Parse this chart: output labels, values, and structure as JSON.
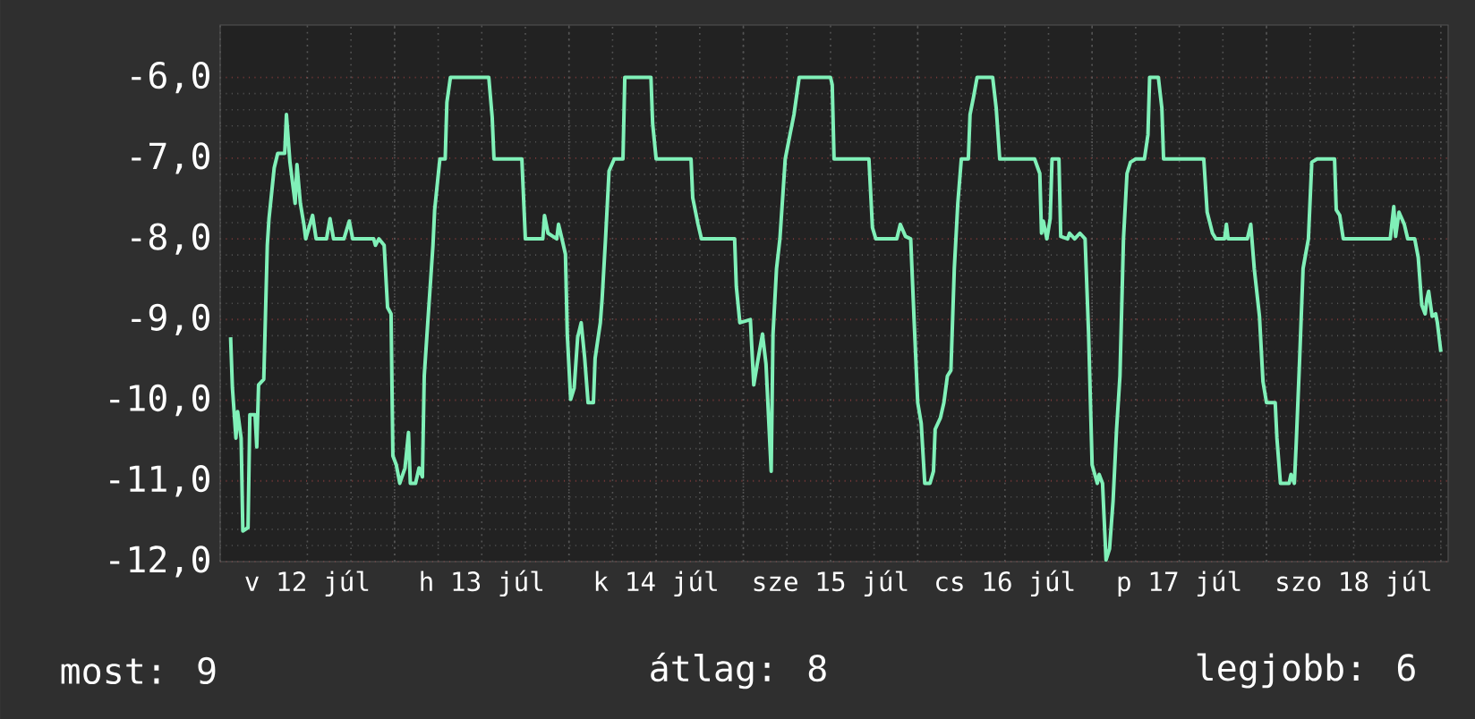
{
  "chart_data": {
    "type": "line",
    "color": "#80f0b8",
    "x": [
      "--07-12T01:26",
      "--07-12T01:41",
      "--07-12T02:10",
      "--07-12T02:24",
      "--07-12T02:53",
      "--07-12T03:07",
      "--07-12T03:50",
      "--07-12T04:05",
      "--07-12T04:48",
      "--07-12T05:02",
      "--07-12T05:17",
      "--07-12T06:00",
      "--07-12T06:29",
      "--07-12T06:43",
      "--07-12T07:26",
      "--07-12T07:55",
      "--07-12T08:53",
      "--07-12T09:07",
      "--07-12T09:36",
      "--07-12T10:19",
      "--07-12T10:34",
      "--07-12T11:02",
      "--07-12T11:31",
      "--07-12T11:46",
      "--07-12T12:43",
      "--07-12T13:12",
      "--07-12T14:38",
      "--07-12T15:07",
      "--07-12T15:36",
      "--07-12T17:02",
      "--07-12T17:46",
      "--07-12T18:14",
      "--07-12T21:07",
      "--07-12T21:22",
      "--07-12T21:50",
      "--07-12T22:34",
      "--07-12T23:02",
      "--07-12T23:31",
      "--07-12T23:46",
      "--07-13T00:14",
      "--07-13T00:43",
      "--07-13T01:26",
      "--07-13T01:55",
      "--07-13T02:10",
      "--07-13T02:53",
      "--07-13T03:22",
      "--07-13T03:50",
      "--07-13T04:05",
      "--07-13T04:34",
      "--07-13T05:17",
      "--07-13T05:31",
      "--07-13T06:14",
      "--07-13T06:58",
      "--07-13T07:12",
      "--07-13T07:41",
      "--07-13T12:58",
      "--07-13T13:26",
      "--07-13T13:41",
      "--07-13T17:31",
      "--07-13T18:00",
      "--07-13T20:24",
      "--07-13T20:38",
      "--07-13T21:07",
      "--07-13T22:19",
      "--07-13T22:34",
      "--07-13T23:02",
      "--07-13T23:31",
      "--07-13T23:46",
      "--07-14T00:14",
      "--07-14T00:43",
      "--07-14T01:12",
      "--07-14T01:41",
      "--07-14T02:10",
      "--07-14T02:38",
      "--07-14T03:22",
      "--07-14T03:36",
      "--07-14T04:19",
      "--07-14T04:34",
      "--07-14T05:02",
      "--07-14T05:31",
      "--07-14T06:14",
      "--07-14T07:26",
      "--07-14T07:41",
      "--07-14T11:17",
      "--07-14T11:31",
      "--07-14T12:00",
      "--07-14T16:48",
      "--07-14T17:02",
      "--07-14T17:46",
      "--07-14T18:14",
      "--07-14T22:48",
      "--07-14T23:02",
      "--07-14T23:31",
      "--07-15T00:58",
      "--07-15T01:26",
      "--07-15T01:55",
      "--07-15T02:38",
      "--07-15T03:07",
      "--07-15T03:50",
      "--07-15T04:05",
      "--07-15T04:34",
      "--07-15T05:02",
      "--07-15T05:46",
      "--07-15T06:29",
      "--07-15T06:58",
      "--07-15T07:41",
      "--07-15T12:00",
      "--07-15T12:14",
      "--07-15T12:29",
      "--07-15T17:17",
      "--07-15T17:46",
      "--07-15T18:14",
      "--07-15T21:07",
      "--07-15T21:36",
      "--07-15T22:19",
      "--07-15T23:02",
      "--07-15T23:31",
      "--07-16T00:00",
      "--07-16T00:29",
      "--07-16T00:58",
      "--07-16T01:41",
      "--07-16T02:10",
      "--07-16T02:24",
      "--07-16T03:07",
      "--07-16T03:36",
      "--07-16T04:05",
      "--07-16T04:34",
      "--07-16T05:02",
      "--07-16T05:31",
      "--07-16T06:00",
      "--07-16T06:58",
      "--07-16T07:12",
      "--07-16T07:41",
      "--07-16T08:10",
      "--07-16T10:19",
      "--07-16T10:48",
      "--07-16T11:17",
      "--07-16T16:05",
      "--07-16T16:48",
      "--07-16T17:02",
      "--07-16T17:17",
      "--07-16T17:46",
      "--07-16T18:14",
      "--07-16T18:29",
      "--07-16T19:26",
      "--07-16T19:41",
      "--07-16T20:38",
      "--07-16T20:53",
      "--07-16T21:36",
      "--07-16T22:19",
      "--07-16T23:02",
      "--07-16T23:31",
      "--07-17T00:00",
      "--07-17T00:43",
      "--07-17T00:58",
      "--07-17T01:26",
      "--07-17T01:55",
      "--07-17T02:24",
      "--07-17T02:53",
      "--07-17T03:22",
      "--07-17T03:50",
      "--07-17T04:19",
      "--07-17T04:48",
      "--07-17T05:17",
      "--07-17T06:00",
      "--07-17T07:12",
      "--07-17T07:41",
      "--07-17T07:55",
      "--07-17T09:07",
      "--07-17T09:36",
      "--07-17T09:50",
      "--07-17T15:22",
      "--07-17T15:50",
      "--07-17T16:34",
      "--07-17T17:02",
      "--07-17T18:14",
      "--07-17T18:29",
      "--07-17T18:43",
      "--07-17T21:22",
      "--07-17T21:50",
      "--07-17T22:19",
      "--07-17T23:02",
      "--07-17T23:31",
      "--07-18T00:00",
      "--07-18T01:12",
      "--07-18T01:26",
      "--07-18T01:55",
      "--07-18T03:07",
      "--07-18T03:22",
      "--07-18T03:50",
      "--07-18T04:05",
      "--07-18T04:34",
      "--07-18T05:02",
      "--07-18T05:46",
      "--07-18T06:14",
      "--07-18T06:58",
      "--07-18T09:22",
      "--07-18T09:36",
      "--07-18T10:05",
      "--07-18T10:34",
      "--07-18T17:02",
      "--07-18T17:31",
      "--07-18T17:46",
      "--07-18T18:14",
      "--07-18T18:58",
      "--07-18T19:26",
      "--07-18T20:24",
      "--07-18T20:53",
      "--07-18T21:22",
      "--07-18T21:50",
      "--07-18T22:05",
      "--07-18T22:19",
      "--07-18T22:48",
      "--07-18T23:17",
      "--07-18T23:31",
      "--07-19T00:00"
    ],
    "values": [
      -9.22,
      -9.85,
      -10.47,
      -10.14,
      -10.47,
      -11.62,
      -11.58,
      -10.18,
      -10.18,
      -10.58,
      -9.81,
      -9.74,
      -8.08,
      -7.75,
      -7.12,
      -6.94,
      -6.94,
      -6.46,
      -7.05,
      -7.56,
      -7.08,
      -7.56,
      -7.82,
      -8.0,
      -7.71,
      -8.0,
      -8.0,
      -7.75,
      -8.0,
      -8.0,
      -7.78,
      -8.0,
      -8.0,
      -8.08,
      -8.0,
      -8.08,
      -8.85,
      -8.93,
      -10.69,
      -10.8,
      -11.03,
      -10.84,
      -10.4,
      -11.03,
      -11.03,
      -10.84,
      -10.95,
      -9.7,
      -9.04,
      -8.08,
      -7.64,
      -7.01,
      -7.01,
      -6.31,
      -6.0,
      -6.0,
      -6.49,
      -7.01,
      -7.01,
      -8.0,
      -8.0,
      -7.71,
      -7.93,
      -8.0,
      -7.82,
      -8.0,
      -8.19,
      -9.18,
      -9.99,
      -9.85,
      -9.22,
      -9.04,
      -9.48,
      -10.03,
      -10.03,
      -9.48,
      -9.04,
      -8.74,
      -8.0,
      -7.16,
      -7.01,
      -7.01,
      -6.0,
      -6.0,
      -6.57,
      -7.01,
      -7.01,
      -7.49,
      -7.82,
      -8.0,
      -8.0,
      -8.59,
      -9.04,
      -9.0,
      -9.81,
      -9.55,
      -9.18,
      -9.55,
      -10.88,
      -9.18,
      -8.37,
      -8.0,
      -7.01,
      -6.68,
      -6.46,
      -6.0,
      -6.0,
      -6.09,
      -7.01,
      -7.01,
      -7.86,
      -8.0,
      -8.0,
      -7.82,
      -7.97,
      -8.0,
      -9.04,
      -10.03,
      -10.29,
      -11.03,
      -11.03,
      -10.88,
      -10.36,
      -10.22,
      -10.03,
      -9.7,
      -9.63,
      -8.37,
      -7.56,
      -7.01,
      -7.01,
      -6.46,
      -6.24,
      -6.0,
      -6.0,
      -6.38,
      -7.01,
      -7.01,
      -7.19,
      -7.93,
      -7.78,
      -8.0,
      -7.75,
      -7.01,
      -7.01,
      -7.97,
      -8.0,
      -7.93,
      -8.0,
      -7.93,
      -8.0,
      -9.18,
      -10.8,
      -11.03,
      -10.92,
      -11.03,
      -11.98,
      -11.84,
      -11.25,
      -10.36,
      -9.7,
      -8.0,
      -7.19,
      -7.05,
      -7.01,
      -7.01,
      -6.71,
      -6.0,
      -6.0,
      -6.38,
      -7.01,
      -7.01,
      -7.67,
      -7.93,
      -8.0,
      -8.0,
      -7.82,
      -8.0,
      -8.0,
      -7.82,
      -8.37,
      -8.96,
      -9.77,
      -10.03,
      -10.03,
      -10.47,
      -11.03,
      -11.03,
      -10.92,
      -11.03,
      -10.55,
      -9.48,
      -8.37,
      -8.0,
      -7.05,
      -7.01,
      -7.01,
      -7.64,
      -7.71,
      -8.0,
      -8.0,
      -7.6,
      -7.97,
      -7.67,
      -7.82,
      -8.0,
      -8.0,
      -8.23,
      -8.82,
      -8.93,
      -8.74,
      -8.65,
      -8.96,
      -8.93,
      -9.04,
      -9.4
    ],
    "xlim": [
      "--07-12T00:00",
      "--07-19T01:00"
    ],
    "ylim": [
      -12,
      -5.35
    ],
    "xticks": [
      {
        "value": "--07-12T12:00",
        "label": "v 12 júl"
      },
      {
        "value": "--07-13T12:00",
        "label": "h 13 júl"
      },
      {
        "value": "--07-14T12:00",
        "label": "k 14 júl"
      },
      {
        "value": "--07-15T12:00",
        "label": "sze 15 júl"
      },
      {
        "value": "--07-16T12:00",
        "label": "cs 16 júl"
      },
      {
        "value": "--07-17T12:00",
        "label": "p 17 júl"
      },
      {
        "value": "--07-18T12:00",
        "label": "szo 18 júl"
      }
    ],
    "yticks": [
      {
        "value": -12,
        "label": "-12,0"
      },
      {
        "value": -11,
        "label": "-11,0"
      },
      {
        "value": -10,
        "label": "-10,0"
      },
      {
        "value": -9,
        "label": "-9,0"
      },
      {
        "value": -8,
        "label": "-8,0"
      },
      {
        "value": -7,
        "label": "-7,0"
      },
      {
        "value": -6,
        "label": "-6,0"
      }
    ],
    "grid": true,
    "annotations": [
      "most: 9",
      "átlag: 8",
      "legjobb: 6"
    ]
  }
}
